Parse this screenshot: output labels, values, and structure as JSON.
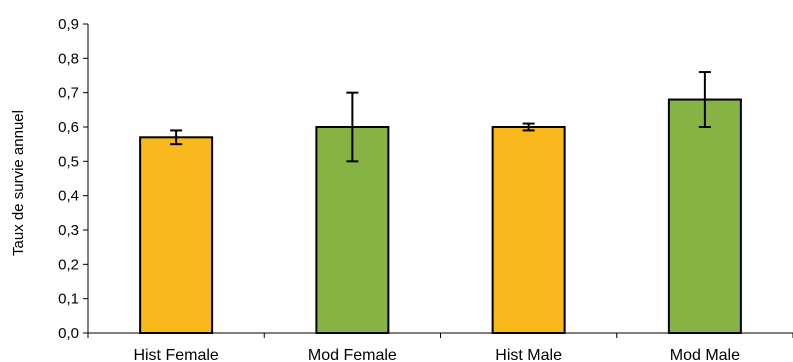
{
  "chart_data": {
    "type": "bar",
    "title": "",
    "xlabel": "",
    "ylabel": "Taux de survie annuel",
    "categories": [
      "Hist Female",
      "Mod Female",
      "Hist Male",
      "Mod Male"
    ],
    "values": [
      0.57,
      0.6,
      0.6,
      0.68
    ],
    "error_low": [
      0.55,
      0.5,
      0.59,
      0.6
    ],
    "error_high": [
      0.59,
      0.7,
      0.61,
      0.76
    ],
    "bar_colors": [
      "#f9b81b",
      "#86b344",
      "#f9b81b",
      "#86b344"
    ],
    "bar_outline": "#000000",
    "ylim": [
      0,
      0.9
    ],
    "yticks": [
      0.0,
      0.1,
      0.2,
      0.3,
      0.4,
      0.5,
      0.6,
      0.7,
      0.8,
      0.9
    ],
    "ytick_labels": [
      "0,0",
      "0,1",
      "0,2",
      "0,3",
      "0,4",
      "0,5",
      "0,6",
      "0,7",
      "0,8",
      "0,9"
    ],
    "grid": false,
    "legend": "none"
  }
}
